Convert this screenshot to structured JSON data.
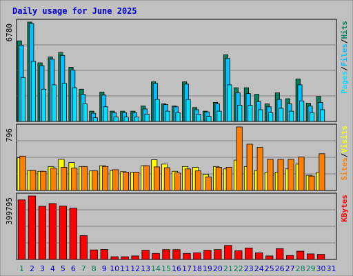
{
  "title": "Daily usage for June 2025",
  "colors": {
    "hits": "#00805c",
    "files": "#00c0ff",
    "pages": "#00e0ff",
    "visits": "#ffff00",
    "sites": "#ff8000",
    "kbytes": "#ff0000",
    "weekend_label": "#00805c",
    "weekday_label": "#0000cc"
  },
  "chart_data": [
    {
      "type": "bar",
      "panel": "hits-files-pages",
      "y_tick_label": "6780",
      "ylim": [
        0,
        6780
      ],
      "x": [
        "1",
        "2",
        "3",
        "4",
        "5",
        "6",
        "7",
        "8",
        "9",
        "10",
        "11",
        "12",
        "13",
        "14",
        "15",
        "16",
        "17",
        "18",
        "19",
        "20",
        "21",
        "22",
        "23",
        "24",
        "25",
        "26",
        "27",
        "28",
        "29",
        "30",
        "31"
      ],
      "weekend_days": [
        "1",
        "7",
        "8",
        "14",
        "15",
        "21",
        "22",
        "28",
        "29"
      ],
      "right_labels": [
        "Pages",
        "/",
        "Files",
        "/",
        "Hits"
      ],
      "series": [
        {
          "name": "Hits",
          "values": [
            5500,
            6780,
            4000,
            4400,
            4700,
            3700,
            2200,
            700,
            2000,
            700,
            700,
            700,
            1050,
            2700,
            1200,
            1050,
            2700,
            950,
            700,
            1300,
            4550,
            2300,
            2300,
            1850,
            1200,
            1950,
            1550,
            2900,
            1250,
            1700,
            0
          ]
        },
        {
          "name": "Files",
          "values": [
            5200,
            6680,
            3800,
            4250,
            4500,
            3500,
            1850,
            560,
            1800,
            600,
            600,
            600,
            850,
            2600,
            1150,
            1000,
            2550,
            800,
            650,
            1200,
            4300,
            1950,
            1900,
            1350,
            1000,
            1500,
            1200,
            2500,
            1050,
            1300,
            0
          ]
        },
        {
          "name": "Pages",
          "values": [
            3000,
            4100,
            2200,
            2500,
            2600,
            2300,
            1200,
            250,
            1000,
            300,
            300,
            300,
            500,
            1500,
            700,
            600,
            1500,
            500,
            350,
            700,
            2500,
            1100,
            1100,
            800,
            600,
            900,
            700,
            1400,
            600,
            800,
            0
          ]
        }
      ]
    },
    {
      "type": "bar",
      "panel": "visits-sites",
      "y_tick_label": "796",
      "ylim": [
        0,
        796
      ],
      "x": [
        "1",
        "2",
        "3",
        "4",
        "5",
        "6",
        "7",
        "8",
        "9",
        "10",
        "11",
        "12",
        "13",
        "14",
        "15",
        "16",
        "17",
        "18",
        "19",
        "20",
        "21",
        "22",
        "23",
        "24",
        "25",
        "26",
        "27",
        "28",
        "29",
        "30",
        "31"
      ],
      "weekend_days": [
        "1",
        "7",
        "8",
        "14",
        "15",
        "21",
        "22",
        "28",
        "29"
      ],
      "right_labels": [
        "Sites",
        "/",
        "Visits"
      ],
      "series": [
        {
          "name": "Visits",
          "values": [
            410,
            250,
            240,
            300,
            390,
            350,
            300,
            245,
            310,
            250,
            235,
            230,
            310,
            385,
            330,
            240,
            300,
            290,
            200,
            300,
            270,
            380,
            300,
            250,
            230,
            230,
            270,
            330,
            190,
            230,
            0
          ]
        },
        {
          "name": "Sites",
          "values": [
            430,
            250,
            240,
            280,
            290,
            280,
            300,
            245,
            300,
            260,
            230,
            230,
            310,
            295,
            285,
            220,
            270,
            245,
            170,
            290,
            290,
            796,
            580,
            540,
            390,
            390,
            390,
            420,
            180,
            460,
            0
          ]
        }
      ]
    },
    {
      "type": "bar",
      "panel": "kbytes",
      "y_tick_label": "399795",
      "ylim": [
        0,
        399795
      ],
      "x": [
        "1",
        "2",
        "3",
        "4",
        "5",
        "6",
        "7",
        "8",
        "9",
        "10",
        "11",
        "12",
        "13",
        "14",
        "15",
        "16",
        "17",
        "18",
        "19",
        "20",
        "21",
        "22",
        "23",
        "24",
        "25",
        "26",
        "27",
        "28",
        "29",
        "30",
        "31"
      ],
      "weekend_days": [
        "1",
        "7",
        "8",
        "14",
        "15",
        "21",
        "22",
        "28",
        "29"
      ],
      "right_labels": [
        "KBytes"
      ],
      "series": [
        {
          "name": "KBytes",
          "values": [
            375000,
            399795,
            335000,
            352000,
            336000,
            323000,
            150000,
            60000,
            63000,
            17000,
            17000,
            22000,
            58000,
            38000,
            62000,
            62000,
            38000,
            42000,
            58000,
            62000,
            88000,
            55000,
            72000,
            42000,
            22000,
            68000,
            25000,
            52000,
            35000,
            32000,
            0
          ]
        }
      ]
    }
  ]
}
